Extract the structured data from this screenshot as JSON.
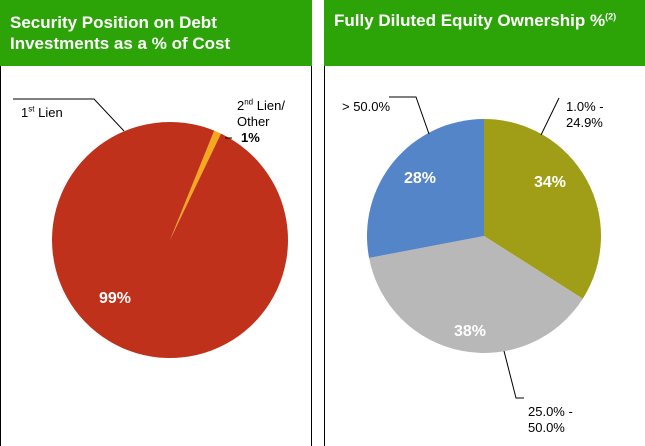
{
  "colors": {
    "header_bg": "#2ca407",
    "first_lien": "#c0311c",
    "second_lien": "#f4a81d",
    "lt_50": "#a09d16",
    "mid": "#b8b8b8",
    "gt_50": "#5585c9"
  },
  "left": {
    "title_line1": "Security Position on Debt",
    "title_line2": "Investments as a % of Cost",
    "first_lien_label": "Lien",
    "first_lien_sup": "st",
    "first_lien_prefix": "1",
    "second_lien_prefix": "2",
    "second_lien_sup": "nd",
    "second_lien_label": "Lien/",
    "second_lien_label2": "Other",
    "second_lien_pct": "1%",
    "first_lien_pct": "99%"
  },
  "right": {
    "title": "Fully Diluted Equity Ownership %",
    "title_sup": "(2)",
    "label_a_line1": "1.0% -",
    "label_a_line2": "24.9%",
    "label_b_line1": "25.0% -",
    "label_b_line2": "50.0%",
    "label_c": "> 50.0%",
    "pct_a": "34%",
    "pct_b": "38%",
    "pct_c": "28%"
  },
  "chart_data": [
    {
      "type": "pie",
      "title": "Security Position on Debt Investments as a % of Cost",
      "categories": [
        "2nd Lien/ Other",
        "1st Lien"
      ],
      "values": [
        1,
        99
      ],
      "colors": [
        "#f4a81d",
        "#c0311c"
      ]
    },
    {
      "type": "pie",
      "title": "Fully Diluted Equity Ownership %",
      "categories": [
        "1.0% - 24.9%",
        "25.0% - 50.0%",
        "> 50.0%"
      ],
      "values": [
        34,
        38,
        28
      ],
      "colors": [
        "#a09d16",
        "#b8b8b8",
        "#5585c9"
      ]
    }
  ]
}
